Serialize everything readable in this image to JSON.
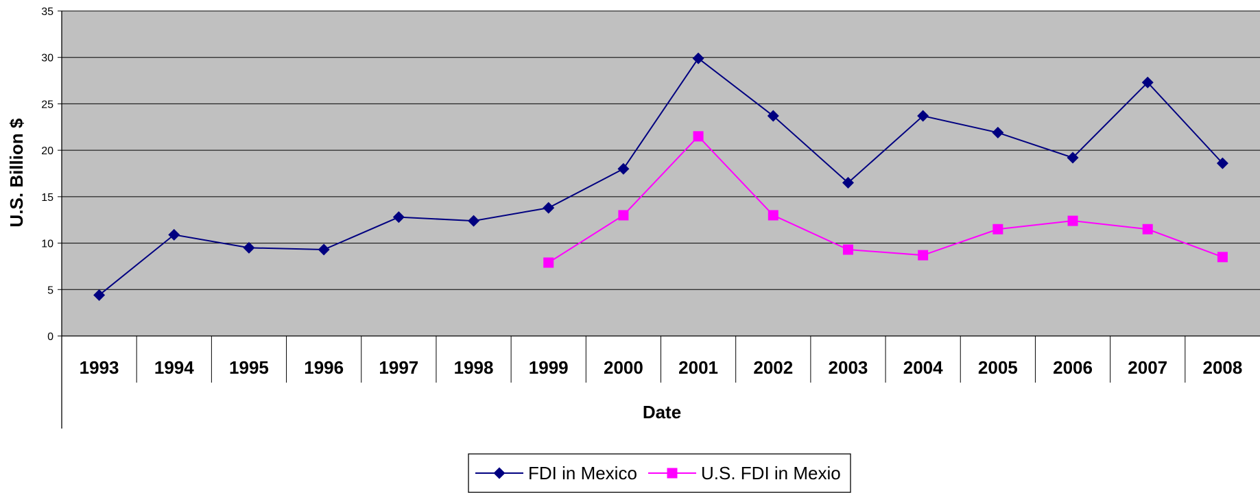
{
  "chart_data": {
    "type": "line",
    "xlabel": "Date",
    "ylabel": "U.S. Billion $",
    "ylim": [
      0,
      35
    ],
    "yticks": [
      0,
      5,
      10,
      15,
      20,
      25,
      30,
      35
    ],
    "categories": [
      "1993",
      "1994",
      "1995",
      "1996",
      "1997",
      "1998",
      "1999",
      "2000",
      "2001",
      "2002",
      "2003",
      "2004",
      "2005",
      "2006",
      "2007",
      "2008"
    ],
    "grid": true,
    "legend_position": "bottom-center",
    "plot_background": "#C0C0C0",
    "series": [
      {
        "name": "FDI in Mexico",
        "color": "#000080",
        "marker": "diamond",
        "values": [
          4.4,
          10.9,
          9.5,
          9.3,
          12.8,
          12.4,
          13.8,
          18.0,
          29.9,
          23.7,
          16.5,
          23.7,
          21.9,
          19.2,
          27.3,
          18.6
        ]
      },
      {
        "name": "U.S. FDI in Mexio",
        "color": "#FF00FF",
        "marker": "square",
        "values": [
          null,
          null,
          null,
          null,
          null,
          null,
          7.9,
          13.0,
          21.5,
          13.0,
          9.3,
          8.7,
          11.5,
          12.4,
          11.5,
          8.5
        ]
      }
    ]
  }
}
